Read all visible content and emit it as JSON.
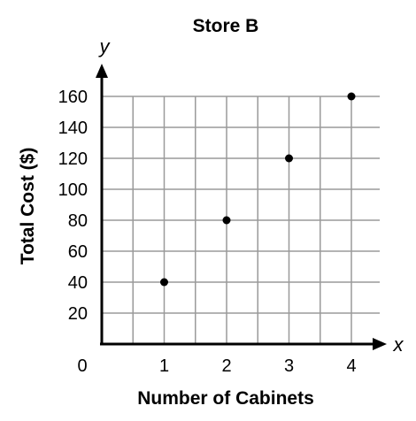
{
  "chart_data": {
    "type": "scatter",
    "title": "Store B",
    "xlabel": "Number of Cabinets",
    "ylabel": "Total Cost ($)",
    "x_axis_var": "x",
    "y_axis_var": "y",
    "origin_label": "0",
    "xlim": [
      0,
      4
    ],
    "ylim": [
      0,
      160
    ],
    "x_ticks": [
      1,
      2,
      3,
      4
    ],
    "y_ticks": [
      20,
      40,
      60,
      80,
      100,
      120,
      140,
      160
    ],
    "grid": true,
    "points": [
      {
        "x": 1,
        "y": 40
      },
      {
        "x": 2,
        "y": 80
      },
      {
        "x": 3,
        "y": 120
      },
      {
        "x": 4,
        "y": 160
      }
    ]
  }
}
